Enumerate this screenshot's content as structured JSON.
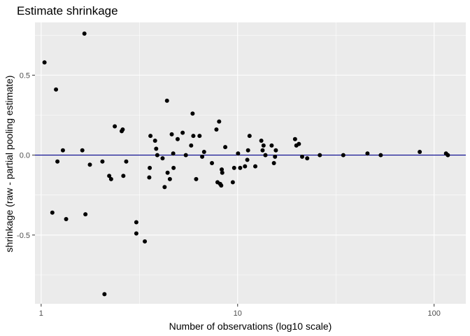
{
  "chart_data": {
    "type": "scatter",
    "title": "Estimate shrinkage",
    "xlabel": "Number of observations (log10 scale)",
    "ylabel": "shrinkage (raw - partial pooling estimate)",
    "x_scale": "log10",
    "xlim": [
      0.93,
      145
    ],
    "ylim": [
      -0.93,
      0.83
    ],
    "x_ticks": [
      1,
      10,
      100
    ],
    "x_tick_labels": [
      "1",
      "10",
      "100"
    ],
    "y_ticks": [
      -0.5,
      0.0,
      0.5
    ],
    "y_tick_labels": [
      "-0.5",
      "0.0",
      "0.5"
    ],
    "grid": true,
    "reference_line": {
      "y": 0,
      "color": "#00008b"
    },
    "colors": {
      "panel": "#ebebeb",
      "grid": "#ffffff",
      "points": "#000000",
      "hline": "#00008b"
    },
    "points": [
      {
        "x": 1.04,
        "y": 0.58
      },
      {
        "x": 1.14,
        "y": -0.36
      },
      {
        "x": 1.19,
        "y": 0.41
      },
      {
        "x": 1.21,
        "y": -0.04
      },
      {
        "x": 1.29,
        "y": 0.03
      },
      {
        "x": 1.34,
        "y": -0.4
      },
      {
        "x": 1.62,
        "y": 0.03
      },
      {
        "x": 1.66,
        "y": 0.76
      },
      {
        "x": 1.68,
        "y": -0.37
      },
      {
        "x": 1.77,
        "y": -0.06
      },
      {
        "x": 2.05,
        "y": -0.04
      },
      {
        "x": 2.1,
        "y": -0.87
      },
      {
        "x": 2.22,
        "y": -0.13
      },
      {
        "x": 2.27,
        "y": -0.15
      },
      {
        "x": 2.37,
        "y": 0.18
      },
      {
        "x": 2.57,
        "y": 0.15
      },
      {
        "x": 2.6,
        "y": 0.16
      },
      {
        "x": 2.62,
        "y": -0.13
      },
      {
        "x": 2.71,
        "y": -0.04
      },
      {
        "x": 3.05,
        "y": -0.42
      },
      {
        "x": 3.05,
        "y": -0.49
      },
      {
        "x": 3.37,
        "y": -0.54
      },
      {
        "x": 3.55,
        "y": -0.14
      },
      {
        "x": 3.57,
        "y": -0.08
      },
      {
        "x": 3.6,
        "y": 0.12
      },
      {
        "x": 3.8,
        "y": 0.09
      },
      {
        "x": 3.85,
        "y": 0.04
      },
      {
        "x": 3.9,
        "y": 0.0
      },
      {
        "x": 4.15,
        "y": -0.02
      },
      {
        "x": 4.25,
        "y": -0.2
      },
      {
        "x": 4.37,
        "y": 0.34
      },
      {
        "x": 4.4,
        "y": -0.11
      },
      {
        "x": 4.52,
        "y": -0.15
      },
      {
        "x": 4.62,
        "y": 0.13
      },
      {
        "x": 4.7,
        "y": 0.01
      },
      {
        "x": 4.72,
        "y": -0.08
      },
      {
        "x": 4.95,
        "y": 0.1
      },
      {
        "x": 5.25,
        "y": 0.14
      },
      {
        "x": 5.45,
        "y": 0.0
      },
      {
        "x": 5.8,
        "y": 0.06
      },
      {
        "x": 5.9,
        "y": 0.26
      },
      {
        "x": 5.95,
        "y": 0.12
      },
      {
        "x": 6.15,
        "y": -0.15
      },
      {
        "x": 6.4,
        "y": 0.12
      },
      {
        "x": 6.6,
        "y": -0.01
      },
      {
        "x": 6.75,
        "y": 0.02
      },
      {
        "x": 7.4,
        "y": -0.05
      },
      {
        "x": 7.8,
        "y": 0.16
      },
      {
        "x": 7.9,
        "y": -0.17
      },
      {
        "x": 8.05,
        "y": 0.21
      },
      {
        "x": 8.15,
        "y": -0.18
      },
      {
        "x": 8.25,
        "y": -0.19
      },
      {
        "x": 8.3,
        "y": -0.09
      },
      {
        "x": 8.35,
        "y": -0.11
      },
      {
        "x": 8.65,
        "y": 0.05
      },
      {
        "x": 9.45,
        "y": -0.17
      },
      {
        "x": 9.6,
        "y": -0.08
      },
      {
        "x": 10.05,
        "y": 0.01
      },
      {
        "x": 10.3,
        "y": -0.08
      },
      {
        "x": 10.9,
        "y": -0.07
      },
      {
        "x": 11.2,
        "y": -0.03
      },
      {
        "x": 11.3,
        "y": 0.03
      },
      {
        "x": 11.5,
        "y": 0.12
      },
      {
        "x": 12.3,
        "y": -0.07
      },
      {
        "x": 13.2,
        "y": 0.09
      },
      {
        "x": 13.4,
        "y": 0.03
      },
      {
        "x": 13.55,
        "y": 0.06
      },
      {
        "x": 13.85,
        "y": 0.0
      },
      {
        "x": 14.9,
        "y": 0.06
      },
      {
        "x": 15.3,
        "y": -0.05
      },
      {
        "x": 15.5,
        "y": -0.01
      },
      {
        "x": 15.65,
        "y": 0.03
      },
      {
        "x": 19.6,
        "y": 0.1
      },
      {
        "x": 19.9,
        "y": 0.06
      },
      {
        "x": 20.5,
        "y": 0.07
      },
      {
        "x": 21.3,
        "y": -0.01
      },
      {
        "x": 22.6,
        "y": -0.02
      },
      {
        "x": 26.2,
        "y": 0.0
      },
      {
        "x": 34.5,
        "y": 0.0
      },
      {
        "x": 45.8,
        "y": 0.01
      },
      {
        "x": 53.5,
        "y": 0.0
      },
      {
        "x": 84.5,
        "y": 0.02
      },
      {
        "x": 115.0,
        "y": 0.01
      },
      {
        "x": 117.5,
        "y": 0.0
      }
    ]
  }
}
